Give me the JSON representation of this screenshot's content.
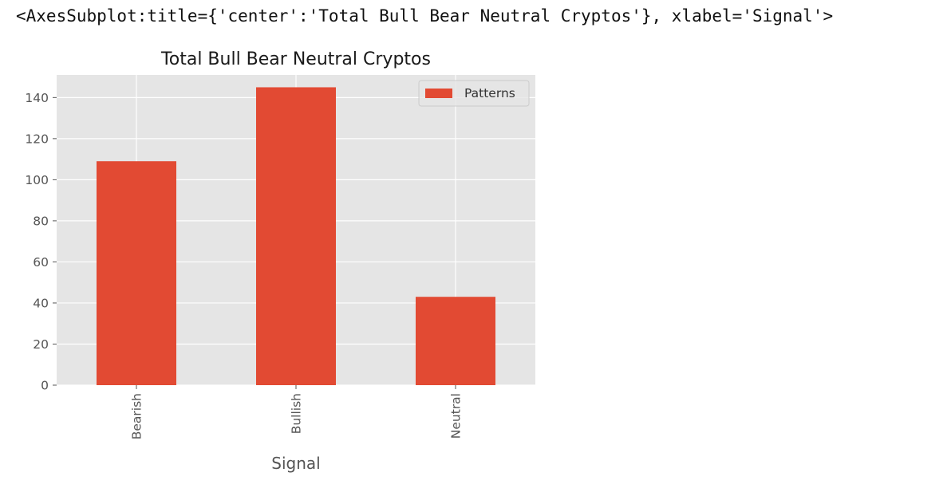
{
  "cell_output": {
    "repr_text": "<AxesSubplot:title={'center':'Total Bull Bear Neutral Cryptos'}, xlabel='Signal'>"
  },
  "colors": {
    "bar": "#E24A33",
    "plot_background": "#E5E5E5",
    "grid": "#FFFFFF",
    "tick_text": "#555555"
  },
  "chart_data": {
    "type": "bar",
    "title": "Total Bull Bear Neutral Cryptos",
    "xlabel": "Signal",
    "ylabel": "",
    "categories": [
      "Bearish",
      "Bullish",
      "Neutral"
    ],
    "series": [
      {
        "name": "Patterns",
        "values": [
          109,
          145,
          43
        ]
      }
    ],
    "ylim": [
      0,
      151
    ],
    "yticks": [
      0,
      20,
      40,
      60,
      80,
      100,
      120,
      140
    ],
    "grid": true,
    "legend_position": "top-right",
    "xtick_rotation": "vertical"
  }
}
